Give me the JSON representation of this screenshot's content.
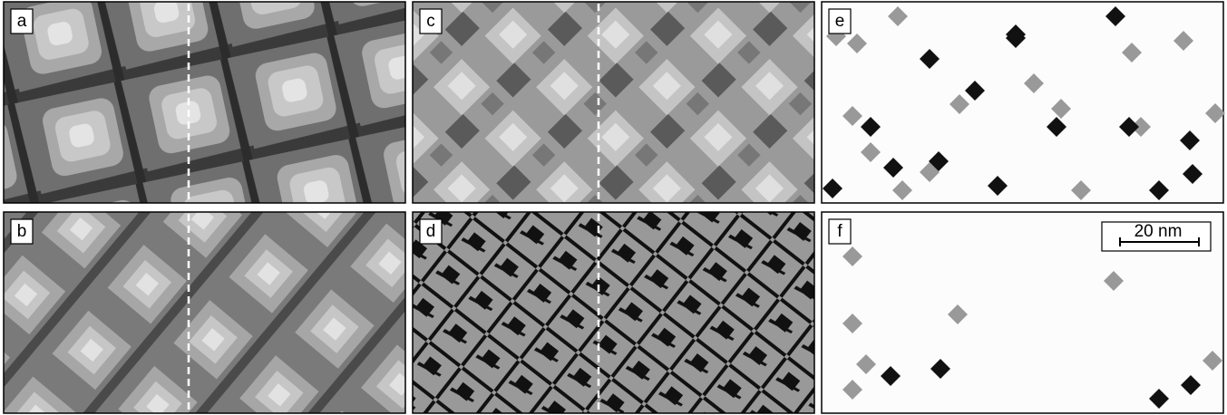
{
  "panels": [
    {
      "label": "a"
    },
    {
      "label": "b"
    },
    {
      "label": "c"
    },
    {
      "label": "d"
    },
    {
      "label": "e"
    },
    {
      "label": "f"
    }
  ],
  "scale_bar": {
    "label": "20 nm"
  }
}
